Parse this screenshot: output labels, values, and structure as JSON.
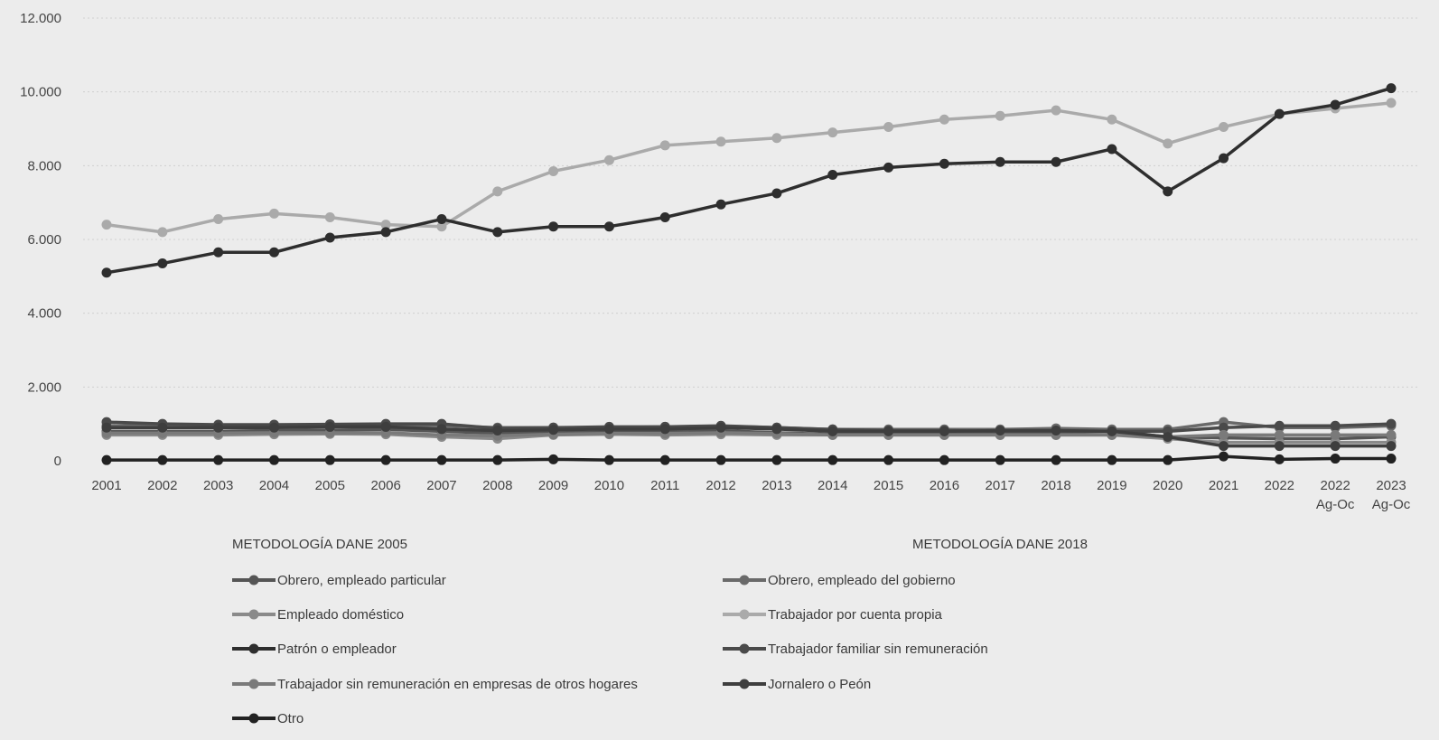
{
  "chart_data": {
    "type": "line",
    "title": "",
    "xlabel": "",
    "ylabel": "",
    "ylim": [
      0,
      12000
    ],
    "yticks": [
      "0",
      "2.000",
      "4.000",
      "6.000",
      "8.000",
      "10.000",
      "12.000"
    ],
    "categories": [
      [
        "2001"
      ],
      [
        "2002"
      ],
      [
        "2003"
      ],
      [
        "2004"
      ],
      [
        "2005"
      ],
      [
        "2006"
      ],
      [
        "2007"
      ],
      [
        "2008"
      ],
      [
        "2009"
      ],
      [
        "2010"
      ],
      [
        "2011"
      ],
      [
        "2012"
      ],
      [
        "2013"
      ],
      [
        "2014"
      ],
      [
        "2015"
      ],
      [
        "2016"
      ],
      [
        "2017"
      ],
      [
        "2018"
      ],
      [
        "2019"
      ],
      [
        "2020"
      ],
      [
        "2021"
      ],
      [
        "2022"
      ],
      [
        "2022",
        "Ag-Oc"
      ],
      [
        "2023",
        "Ag-Oc"
      ]
    ],
    "grid": true,
    "legend_groups": [
      "METODOLOGÍA DANE 2005",
      "METODOLOGÍA DANE 2018"
    ],
    "series": [
      {
        "name": "Obrero, empleado particular",
        "color": "#555555",
        "values": [
          800,
          800,
          800,
          820,
          830,
          850,
          800,
          750,
          760,
          780,
          800,
          820,
          760,
          720,
          740,
          760,
          760,
          780,
          800,
          650,
          620,
          600,
          600,
          650
        ]
      },
      {
        "name": "Obrero, empleado del gobierno",
        "color": "#6a6a6a",
        "values": [
          950,
          950,
          950,
          960,
          970,
          980,
          950,
          900,
          900,
          900,
          920,
          940,
          900,
          850,
          850,
          850,
          850,
          880,
          850,
          850,
          1050,
          900,
          900,
          950
        ]
      },
      {
        "name": "Empleado doméstico",
        "color": "#8a8a8a",
        "values": [
          700,
          700,
          700,
          720,
          730,
          720,
          650,
          600,
          700,
          720,
          700,
          720,
          700,
          700,
          700,
          700,
          700,
          700,
          700,
          600,
          500,
          500,
          500,
          500
        ]
      },
      {
        "name": "Trabajador por cuenta propia",
        "color": "#aaaaaa",
        "values": [
          6400,
          6200,
          6550,
          6700,
          6600,
          6400,
          6350,
          7300,
          7850,
          8150,
          8550,
          8650,
          8750,
          8900,
          9050,
          9250,
          9350,
          9500,
          9250,
          8600,
          9050,
          9400,
          9550,
          9700
        ]
      },
      {
        "name": "Patrón o empleador",
        "color": "#2e2e2e",
        "values": [
          5100,
          5350,
          5650,
          5650,
          6050,
          6200,
          6550,
          6200,
          6350,
          6350,
          6600,
          6950,
          7250,
          7750,
          7950,
          8050,
          8100,
          8100,
          8450,
          7300,
          8200,
          9400,
          9650,
          10100
        ]
      },
      {
        "name": "Trabajador familiar sin remuneración",
        "color": "#4a4a4a",
        "values": [
          1050,
          1000,
          980,
          980,
          990,
          1000,
          1000,
          880,
          900,
          920,
          920,
          950,
          900,
          850,
          820,
          820,
          800,
          800,
          800,
          800,
          900,
          950,
          950,
          1000
        ]
      },
      {
        "name": "Trabajador sin remuneración en empresas de otros hogares",
        "color": "#7a7a7a",
        "values": [
          750,
          750,
          750,
          760,
          760,
          760,
          700,
          680,
          720,
          740,
          740,
          760,
          740,
          700,
          700,
          700,
          700,
          700,
          700,
          650,
          700,
          700,
          700,
          700
        ]
      },
      {
        "name": "Jornalero o Peón",
        "color": "#3e3e3e",
        "values": [
          900,
          900,
          900,
          900,
          920,
          920,
          860,
          820,
          840,
          860,
          860,
          900,
          860,
          800,
          800,
          800,
          820,
          820,
          800,
          650,
          400,
          400,
          400,
          400
        ]
      },
      {
        "name": "Otro",
        "color": "#222222",
        "values": [
          20,
          20,
          20,
          20,
          20,
          20,
          20,
          20,
          40,
          20,
          20,
          20,
          20,
          20,
          20,
          20,
          20,
          20,
          20,
          20,
          120,
          40,
          60,
          60
        ]
      }
    ]
  }
}
